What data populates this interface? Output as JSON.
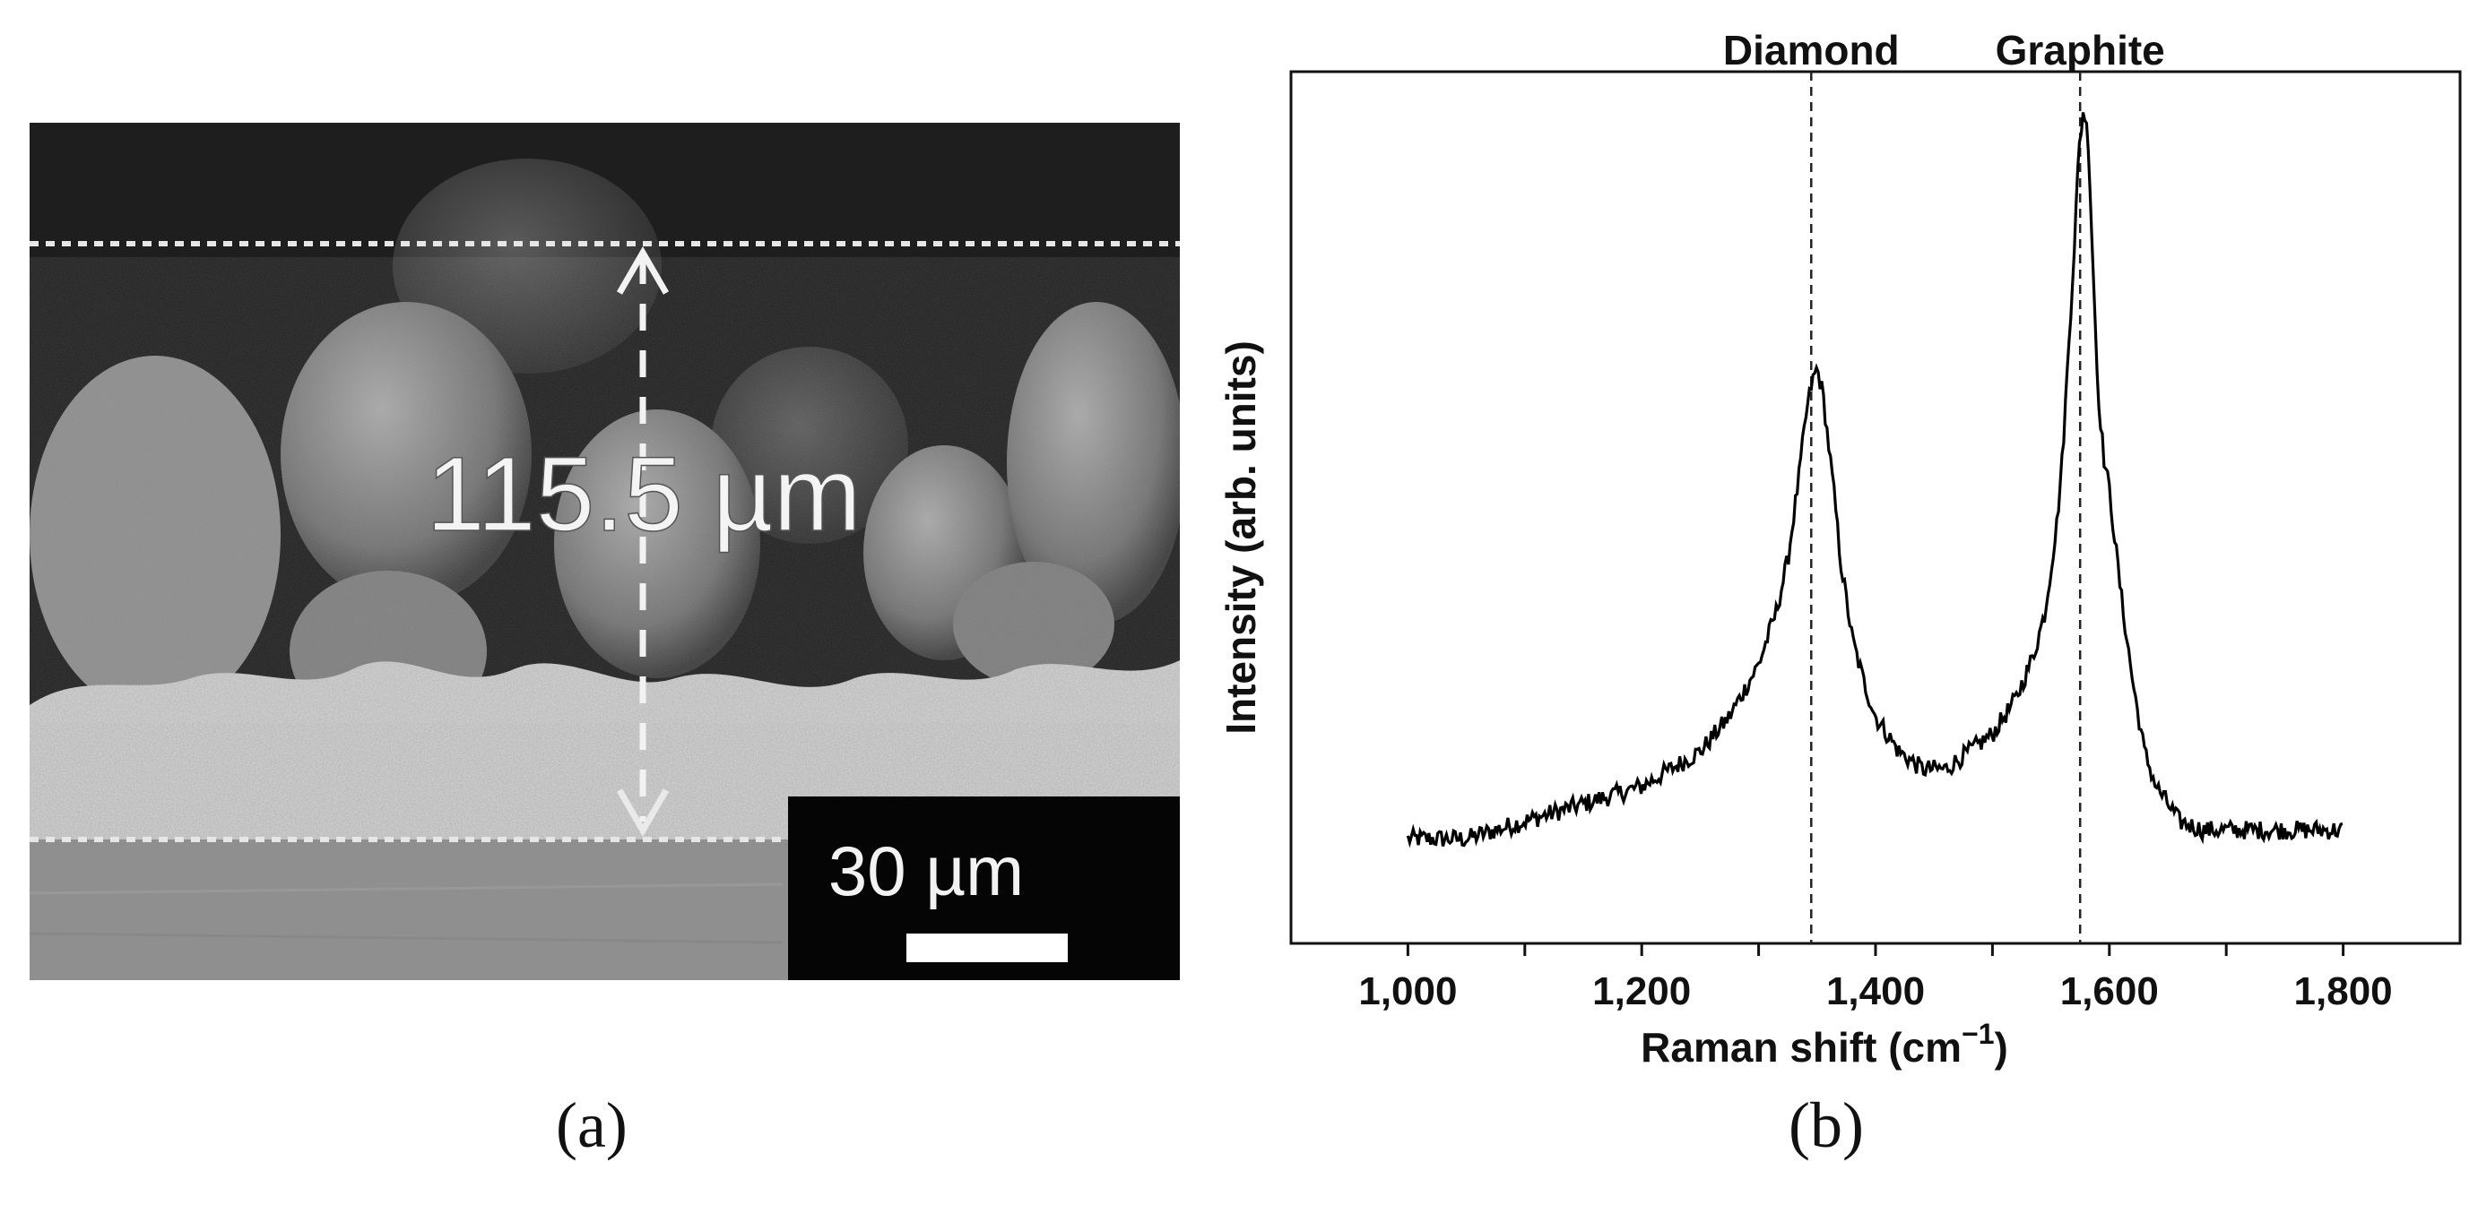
{
  "panel_a": {
    "label": "(a)",
    "thickness_label": "115.5 µm",
    "scale_bar_label": "30 µm"
  },
  "panel_b": {
    "label": "(b)",
    "chart_data": {
      "type": "line",
      "xlabel": "Raman shift (cm",
      "xlabel_sup": "−1",
      "xlabel_close": ")",
      "ylabel": "Intensity (arb. units)",
      "xlim": [
        900,
        1900
      ],
      "ylim": [
        0,
        1
      ],
      "y_ticks_shown": false,
      "grid": false,
      "x_ticks": [
        1000,
        1100,
        1200,
        1300,
        1400,
        1500,
        1600,
        1700,
        1800
      ],
      "x_tick_labels": [
        {
          "value": 1000,
          "label": "1,000"
        },
        {
          "value": 1200,
          "label": "1,200"
        },
        {
          "value": 1400,
          "label": "1,400"
        },
        {
          "value": 1600,
          "label": "1,600"
        },
        {
          "value": 1800,
          "label": "1,800"
        }
      ],
      "annotations": [
        {
          "text": "Diamond",
          "x": 1345
        },
        {
          "text": "Graphite",
          "x": 1575
        }
      ],
      "series": [
        {
          "x": [
            1000,
            1050,
            1100,
            1150,
            1200,
            1225,
            1250,
            1275,
            1300,
            1315,
            1325,
            1335,
            1340,
            1345,
            1350,
            1355,
            1360,
            1365,
            1370,
            1380,
            1390,
            1400,
            1420,
            1440,
            1460,
            1480,
            1500,
            1520,
            1535,
            1545,
            1555,
            1560,
            1565,
            1570,
            1574,
            1578,
            1582,
            1586,
            1590,
            1595,
            1600,
            1605,
            1610,
            1620,
            1630,
            1640,
            1650,
            1660,
            1680,
            1700,
            1750,
            1800
          ],
          "y": [
            0.12,
            0.12,
            0.14,
            0.16,
            0.18,
            0.2,
            0.22,
            0.26,
            0.32,
            0.38,
            0.44,
            0.54,
            0.6,
            0.64,
            0.66,
            0.63,
            0.57,
            0.51,
            0.44,
            0.35,
            0.3,
            0.26,
            0.22,
            0.2,
            0.2,
            0.22,
            0.24,
            0.28,
            0.33,
            0.38,
            0.48,
            0.56,
            0.68,
            0.8,
            0.91,
            0.96,
            0.92,
            0.78,
            0.64,
            0.56,
            0.52,
            0.46,
            0.4,
            0.3,
            0.22,
            0.18,
            0.16,
            0.14,
            0.13,
            0.13,
            0.13,
            0.13
          ]
        }
      ]
    }
  }
}
